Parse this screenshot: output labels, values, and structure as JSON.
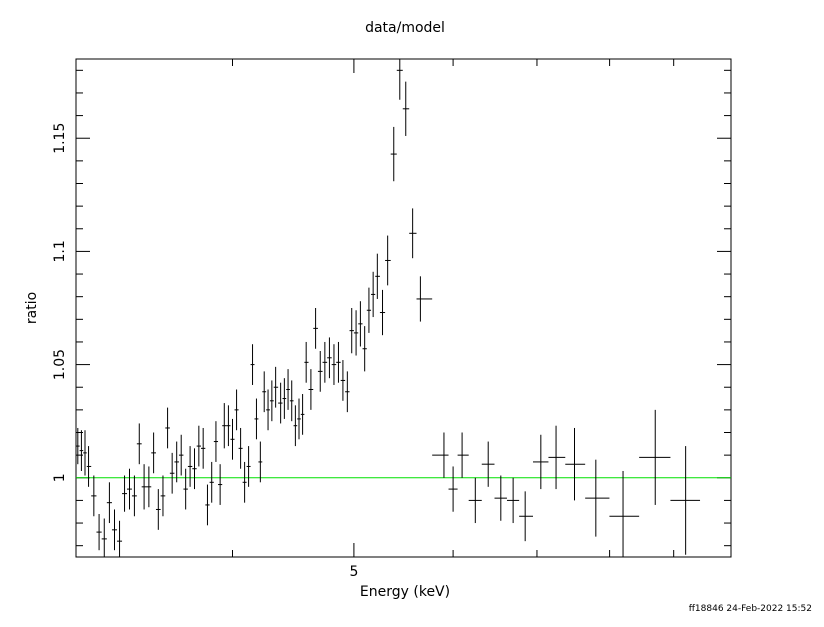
{
  "chart_data": {
    "type": "scatter",
    "title": "data/model",
    "xlabel": "Energy (keV)",
    "ylabel": "ratio",
    "x_scale": "log",
    "xlim": [
      3.0,
      10.0
    ],
    "ylim": [
      0.965,
      1.185
    ],
    "x_ticks": [
      {
        "value": 5,
        "label": "5"
      }
    ],
    "y_ticks": [
      {
        "value": 1.0,
        "label": "1"
      },
      {
        "value": 1.05,
        "label": "1.05"
      },
      {
        "value": 1.1,
        "label": "1.1"
      },
      {
        "value": 1.15,
        "label": "1.15"
      }
    ],
    "reference_line": {
      "y": 1.0,
      "color": "#00e000"
    },
    "series": [
      {
        "color": "#000000",
        "points": [
          [
            3.01,
            1.014,
            0.008
          ],
          [
            3.03,
            1.012,
            0.009
          ],
          [
            3.05,
            1.011,
            0.01
          ],
          [
            3.07,
            1.005,
            0.009
          ],
          [
            3.1,
            0.992,
            0.009
          ],
          [
            3.13,
            0.976,
            0.008
          ],
          [
            3.16,
            0.973,
            0.009
          ],
          [
            3.19,
            0.989,
            0.009
          ],
          [
            3.22,
            0.977,
            0.009
          ],
          [
            3.25,
            0.972,
            0.009
          ],
          [
            3.28,
            0.993,
            0.008
          ],
          [
            3.31,
            0.995,
            0.009
          ],
          [
            3.34,
            0.992,
            0.009
          ],
          [
            3.37,
            1.015,
            0.009
          ],
          [
            3.4,
            0.996,
            0.01
          ],
          [
            3.43,
            0.996,
            0.009
          ],
          [
            3.46,
            1.011,
            0.009
          ],
          [
            3.49,
            0.986,
            0.009
          ],
          [
            3.52,
            0.992,
            0.009
          ],
          [
            3.55,
            1.022,
            0.009
          ],
          [
            3.58,
            1.002,
            0.009
          ],
          [
            3.61,
            1.007,
            0.009
          ],
          [
            3.64,
            1.01,
            0.009
          ],
          [
            3.67,
            0.995,
            0.009
          ],
          [
            3.7,
            1.005,
            0.009
          ],
          [
            3.73,
            1.004,
            0.009
          ],
          [
            3.76,
            1.014,
            0.009
          ],
          [
            3.79,
            1.013,
            0.009
          ],
          [
            3.82,
            0.988,
            0.009
          ],
          [
            3.85,
            0.998,
            0.009
          ],
          [
            3.88,
            1.016,
            0.009
          ],
          [
            3.91,
            0.997,
            0.009
          ],
          [
            3.94,
            1.023,
            0.01
          ],
          [
            3.97,
            1.023,
            0.009
          ],
          [
            4.0,
            1.017,
            0.009
          ],
          [
            4.03,
            1.03,
            0.009
          ],
          [
            4.06,
            1.013,
            0.009
          ],
          [
            4.09,
            0.998,
            0.009
          ],
          [
            4.12,
            1.005,
            0.009
          ],
          [
            4.15,
            1.05,
            0.009
          ],
          [
            4.18,
            1.026,
            0.009
          ],
          [
            4.21,
            1.007,
            0.009
          ],
          [
            4.24,
            1.038,
            0.009
          ],
          [
            4.27,
            1.03,
            0.009
          ],
          [
            4.3,
            1.034,
            0.009
          ],
          [
            4.33,
            1.04,
            0.009
          ],
          [
            4.37,
            1.033,
            0.009
          ],
          [
            4.4,
            1.035,
            0.009
          ],
          [
            4.43,
            1.039,
            0.009
          ],
          [
            4.46,
            1.034,
            0.009
          ],
          [
            4.49,
            1.023,
            0.009
          ],
          [
            4.52,
            1.026,
            0.009
          ],
          [
            4.55,
            1.028,
            0.009
          ],
          [
            4.58,
            1.051,
            0.009
          ],
          [
            4.62,
            1.039,
            0.009
          ],
          [
            4.66,
            1.066,
            0.009
          ],
          [
            4.7,
            1.047,
            0.009
          ],
          [
            4.74,
            1.051,
            0.009
          ],
          [
            4.78,
            1.053,
            0.009
          ],
          [
            4.82,
            1.05,
            0.009
          ],
          [
            4.86,
            1.051,
            0.009
          ],
          [
            4.9,
            1.043,
            0.009
          ],
          [
            4.94,
            1.038,
            0.009
          ],
          [
            4.98,
            1.065,
            0.01
          ],
          [
            5.02,
            1.064,
            0.01
          ],
          [
            5.06,
            1.068,
            0.01
          ],
          [
            5.1,
            1.057,
            0.01
          ],
          [
            5.14,
            1.074,
            0.01
          ],
          [
            5.18,
            1.081,
            0.01
          ],
          [
            5.22,
            1.089,
            0.01
          ],
          [
            5.27,
            1.073,
            0.01
          ],
          [
            5.32,
            1.096,
            0.011
          ],
          [
            5.38,
            1.143,
            0.012
          ],
          [
            5.44,
            1.18,
            0.013
          ],
          [
            5.5,
            1.163,
            0.012
          ],
          [
            5.57,
            1.108,
            0.011
          ],
          [
            5.65,
            1.079,
            0.01
          ],
          [
            5.9,
            1.01,
            0.01
          ],
          [
            6.0,
            0.995,
            0.01
          ],
          [
            6.1,
            1.01,
            0.01
          ],
          [
            6.25,
            0.99,
            0.01
          ],
          [
            6.4,
            1.006,
            0.01
          ],
          [
            6.55,
            0.991,
            0.01
          ],
          [
            6.7,
            0.99,
            0.01
          ],
          [
            6.85,
            0.983,
            0.011
          ],
          [
            7.05,
            1.007,
            0.012
          ],
          [
            7.25,
            1.009,
            0.014
          ],
          [
            7.5,
            1.006,
            0.016
          ],
          [
            7.8,
            0.991,
            0.017
          ],
          [
            8.2,
            0.983,
            0.02
          ],
          [
            8.7,
            1.009,
            0.021
          ],
          [
            9.2,
            0.99,
            0.024
          ]
        ]
      }
    ]
  },
  "footer": {
    "stamp": "ff18846 24-Feb-2022 15:52"
  }
}
